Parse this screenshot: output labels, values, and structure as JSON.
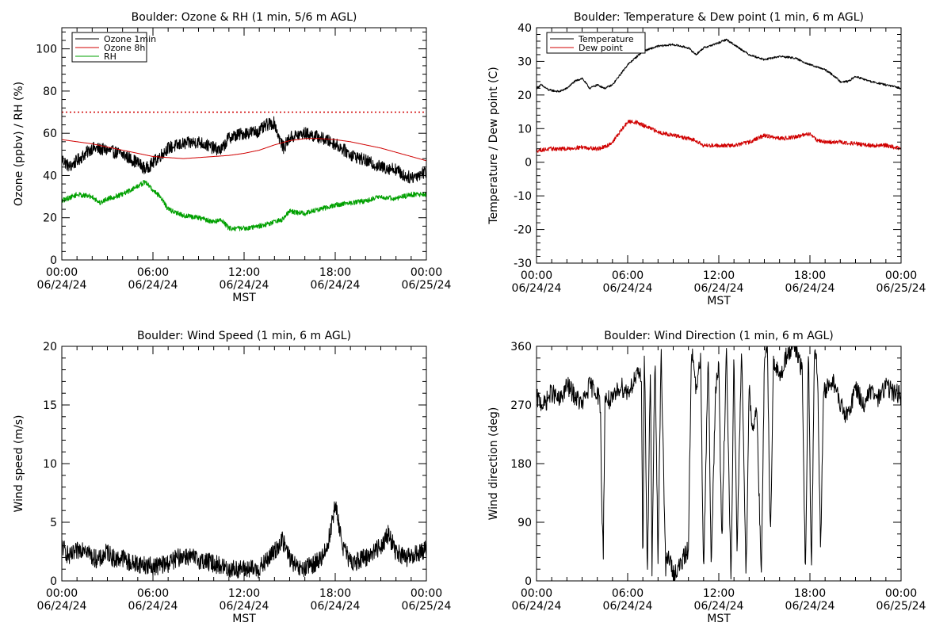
{
  "chart_data": [
    {
      "type": "line",
      "title": "Boulder: Ozone & RH (1 min, 5/6 m AGL)",
      "xlabel": "MST",
      "ylabel": "Ozone (ppbv) / RH (%)",
      "xlim": [
        0,
        24
      ],
      "ylim": [
        0,
        110
      ],
      "yticks": [
        0,
        20,
        40,
        60,
        80,
        100
      ],
      "xticks": [
        {
          "time": "00:00",
          "date": "06/24/24"
        },
        {
          "time": "06:00",
          "date": "06/24/24"
        },
        {
          "time": "12:00",
          "date": "06/24/24"
        },
        {
          "time": "18:00",
          "date": "06/24/24"
        },
        {
          "time": "00:00",
          "date": "06/25/24"
        }
      ],
      "legend": "top-left",
      "reference_line": {
        "value": 70,
        "color": "#d00000",
        "style": "dotted"
      },
      "series": [
        {
          "name": "Ozone 1min",
          "color": "#000000",
          "noise": 3,
          "x": [
            0,
            0.5,
            1,
            1.5,
            2,
            3,
            4,
            5,
            5.5,
            6,
            7,
            8,
            9,
            10,
            10.5,
            11,
            12,
            13,
            13.5,
            14,
            14.3,
            14.6,
            15,
            16,
            17,
            18,
            19,
            20,
            21,
            22,
            22.5,
            23,
            24
          ],
          "y": [
            48,
            44,
            47,
            50,
            53,
            52,
            50,
            46,
            43,
            46,
            53,
            55,
            56,
            53,
            52,
            58,
            60,
            61,
            64,
            65,
            58,
            53,
            58,
            60,
            58,
            55,
            50,
            47,
            44,
            43,
            40,
            39,
            42
          ]
        },
        {
          "name": "Ozone 8h",
          "color": "#d00000",
          "noise": 0,
          "x": [
            0,
            1,
            2,
            3,
            4,
            5,
            6,
            7,
            8,
            9,
            10,
            11,
            12,
            13,
            14,
            15,
            16,
            17,
            18,
            19,
            20,
            21,
            22,
            23,
            24
          ],
          "y": [
            57,
            56,
            55,
            53.5,
            52,
            50.5,
            49,
            48.5,
            48,
            48.5,
            49,
            49.5,
            50.5,
            52,
            54.5,
            56.5,
            57.5,
            57.5,
            57,
            56,
            54.5,
            53,
            51,
            49,
            47
          ]
        },
        {
          "name": "RH",
          "color": "#00a000",
          "noise": 1.2,
          "x": [
            0,
            1,
            2,
            2.5,
            3,
            4,
            5,
            5.5,
            6,
            6.5,
            7,
            8,
            9,
            10,
            10.5,
            11,
            12,
            13,
            14,
            14.5,
            15,
            16,
            17,
            18,
            19,
            20,
            21,
            22,
            23,
            24
          ],
          "y": [
            28,
            31,
            30,
            27,
            29,
            31,
            35,
            37,
            33,
            30,
            24,
            21,
            20,
            18,
            19,
            15,
            15,
            16,
            18,
            19,
            23,
            22,
            24,
            26,
            27,
            28,
            30,
            29,
            31,
            31
          ]
        }
      ]
    },
    {
      "type": "line",
      "title": "Boulder: Temperature & Dew point (1 min, 6 m AGL)",
      "xlabel": "MST",
      "ylabel": "Temperature / Dew point (C)",
      "xlim": [
        0,
        24
      ],
      "ylim": [
        -30,
        40
      ],
      "yticks": [
        -30,
        -20,
        -10,
        0,
        10,
        20,
        30,
        40
      ],
      "xticks": [
        {
          "time": "00:00",
          "date": "06/24/24"
        },
        {
          "time": "06:00",
          "date": "06/24/24"
        },
        {
          "time": "12:00",
          "date": "06/24/24"
        },
        {
          "time": "18:00",
          "date": "06/24/24"
        },
        {
          "time": "00:00",
          "date": "06/25/24"
        }
      ],
      "legend": "top-left",
      "series": [
        {
          "name": "Temperature",
          "color": "#000000",
          "noise": 0.3,
          "x": [
            0,
            0.3,
            0.8,
            1.5,
            2,
            2.5,
            3,
            3.5,
            4,
            4.5,
            5,
            5.5,
            6,
            6.5,
            7,
            8,
            9,
            10,
            10.5,
            11,
            12,
            12.5,
            13,
            14,
            15,
            16,
            17,
            18,
            19,
            19.5,
            20,
            20.5,
            21,
            22,
            23,
            24
          ],
          "y": [
            22,
            23,
            21.5,
            21,
            22,
            24,
            25,
            22,
            23,
            22,
            23,
            26,
            29,
            31,
            33,
            34.5,
            35,
            34,
            32,
            34,
            35.5,
            36.5,
            35,
            32,
            30.5,
            31.5,
            31,
            29,
            27.5,
            26,
            24,
            24,
            25.5,
            24,
            23,
            22
          ]
        },
        {
          "name": "Dew point",
          "color": "#d00000",
          "noise": 0.6,
          "x": [
            0,
            1,
            2,
            3,
            4,
            4.5,
            5,
            5.5,
            6,
            6.5,
            7,
            8,
            9,
            10,
            10.5,
            11,
            12,
            13,
            14,
            15,
            16,
            17,
            18,
            18.5,
            19,
            20,
            21,
            22,
            23,
            24
          ],
          "y": [
            3.5,
            4,
            4,
            4.5,
            4,
            4.5,
            6,
            9,
            12,
            12,
            11,
            9,
            8,
            7,
            6.5,
            5,
            5,
            5,
            6,
            8,
            7,
            7.5,
            8.5,
            6.5,
            6,
            6,
            5.5,
            5,
            5,
            4
          ]
        }
      ]
    },
    {
      "type": "line",
      "title": "Boulder: Wind Speed (1 min, 6 m AGL)",
      "xlabel": "MST",
      "ylabel": "Wind speed (m/s)",
      "xlim": [
        0,
        24
      ],
      "ylim": [
        0,
        20
      ],
      "yticks": [
        0,
        5,
        10,
        15,
        20
      ],
      "xticks": [
        {
          "time": "00:00",
          "date": "06/24/24"
        },
        {
          "time": "06:00",
          "date": "06/24/24"
        },
        {
          "time": "12:00",
          "date": "06/24/24"
        },
        {
          "time": "18:00",
          "date": "06/24/24"
        },
        {
          "time": "00:00",
          "date": "06/25/24"
        }
      ],
      "series": [
        {
          "name": "",
          "color": "#000000",
          "noise": 0.8,
          "x": [
            0,
            0.5,
            1,
            1.5,
            2,
            2.5,
            3,
            3.5,
            4,
            4.5,
            5,
            6,
            7,
            8,
            9,
            10,
            11,
            12,
            13,
            14,
            14.5,
            15,
            15.5,
            16,
            17,
            17.5,
            18,
            18.5,
            19,
            20,
            20.5,
            21,
            21.5,
            22,
            22.5,
            23,
            24
          ],
          "y": [
            3,
            2,
            2.5,
            3,
            2,
            1.8,
            2.5,
            1.8,
            2,
            1.5,
            1.5,
            1.2,
            1.5,
            2.2,
            1.8,
            1.5,
            1,
            1,
            1,
            2.5,
            3.5,
            2,
            1,
            1,
            1.8,
            3,
            6.5,
            3,
            1.5,
            2,
            2.5,
            3,
            4,
            2.5,
            2,
            2,
            2.8
          ]
        }
      ]
    },
    {
      "type": "line",
      "title": "Boulder: Wind Direction (1 min, 6 m AGL)",
      "xlabel": "MST",
      "ylabel": "Wind direction (deg)",
      "xlim": [
        0,
        24
      ],
      "ylim": [
        0,
        360
      ],
      "yticks": [
        0,
        90,
        180,
        270,
        360
      ],
      "xticks": [
        {
          "time": "00:00",
          "date": "06/24/24"
        },
        {
          "time": "06:00",
          "date": "06/24/24"
        },
        {
          "time": "12:00",
          "date": "06/24/24"
        },
        {
          "time": "18:00",
          "date": "06/24/24"
        },
        {
          "time": "00:00",
          "date": "06/25/24"
        }
      ],
      "series": [
        {
          "name": "",
          "color": "#000000",
          "noise": 0,
          "x": [
            0,
            0.5,
            1,
            1.5,
            2,
            2.5,
            3,
            3.5,
            4,
            4.2,
            4.3,
            4.4,
            4.5,
            5,
            5.5,
            6,
            6.5,
            6.9,
            7.0,
            7.1,
            7.3,
            7.5,
            7.6,
            7.8,
            8.0,
            8.2,
            8.5,
            8.7,
            9,
            9.5,
            10,
            10.2,
            10.5,
            10.8,
            11,
            11.3,
            11.5,
            11.8,
            12,
            12.2,
            12.5,
            12.8,
            13,
            13.2,
            13.5,
            13.8,
            14,
            14.2,
            14.5,
            14.8,
            15,
            15.2,
            15.4,
            15.6,
            16,
            16.5,
            17,
            17.5,
            17.7,
            17.9,
            18.1,
            18.3,
            18.5,
            18.7,
            18.9,
            19,
            19.5,
            20,
            20.5,
            21,
            21.5,
            22,
            22.5,
            23,
            23.5,
            24
          ],
          "y": [
            280,
            270,
            290,
            275,
            300,
            285,
            270,
            300,
            290,
            270,
            110,
            45,
            280,
            275,
            300,
            290,
            310,
            320,
            20,
            360,
            5,
            340,
            10,
            350,
            30,
            360,
            20,
            40,
            10,
            25,
            50,
            360,
            290,
            340,
            10,
            360,
            20,
            300,
            330,
            50,
            360,
            0,
            350,
            40,
            360,
            10,
            300,
            230,
            270,
            0,
            330,
            360,
            60,
            340,
            310,
            350,
            360,
            320,
            0,
            360,
            5,
            355,
            320,
            40,
            300,
            290,
            310,
            270,
            250,
            300,
            270,
            290,
            280,
            300,
            290,
            285
          ]
        }
      ]
    }
  ]
}
